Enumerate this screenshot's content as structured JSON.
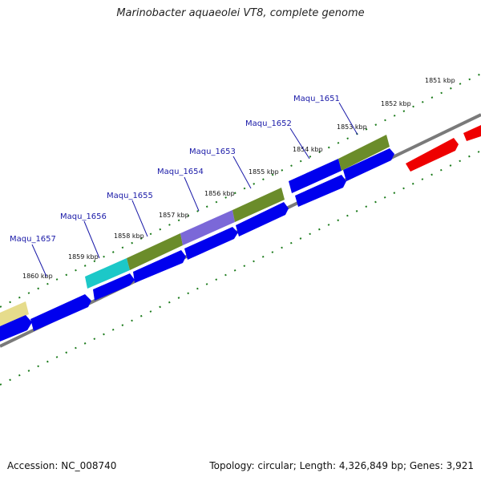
{
  "title": "Marinobacter aquaeolei VT8, complete genome",
  "accession": "Accession: NC_008740",
  "summary": "Topology: circular; Length: 4,326,849 bp; Genes: 3,921",
  "colors": {
    "cds": "#0000ee",
    "rna": "#ee0000",
    "backbone": "#7a7a7a",
    "ticks": "#1a7a1a",
    "label": "#1a1aa8"
  },
  "scale_ticks": [
    "1851 kbp",
    "1852 kbp",
    "1853 kbp",
    "1854 kbp",
    "1855 kbp",
    "1856 kbp",
    "1857 kbp",
    "1858 kbp",
    "1859 kbp",
    "1860 kbp"
  ],
  "gene_labels": [
    "Maqu_1651",
    "Maqu_1652",
    "Maqu_1653",
    "Maqu_1654",
    "Maqu_1655",
    "Maqu_1656",
    "Maqu_1657"
  ]
}
